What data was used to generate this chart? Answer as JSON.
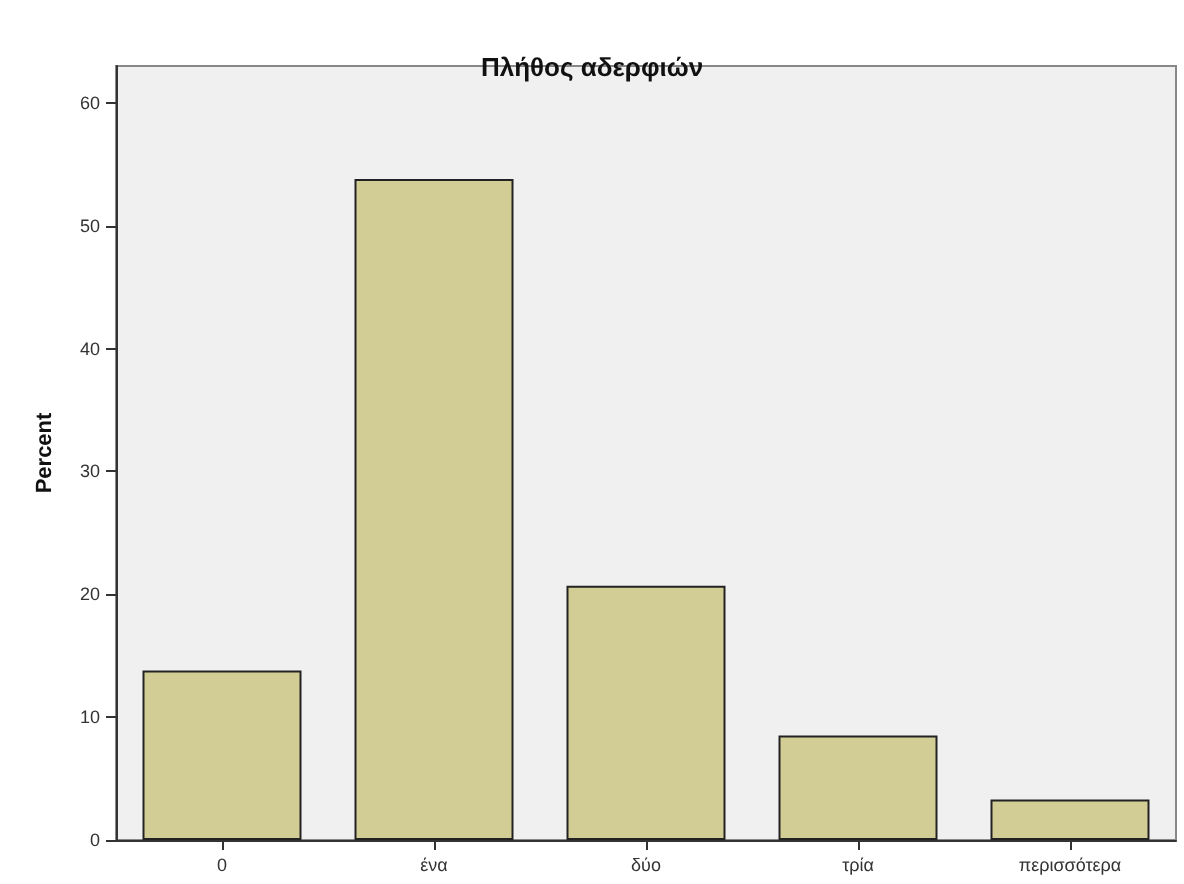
{
  "chart_data": {
    "type": "bar",
    "title": "Πλήθος αδερφιών",
    "ylabel": "Percent",
    "categories": [
      "0",
      "ένα",
      "δύο",
      "τρία",
      "περισσότερα"
    ],
    "values": [
      13.8,
      53.8,
      20.7,
      8.5,
      3.3
    ],
    "color": "#d2cd94",
    "ylim": [
      0,
      63
    ],
    "yticks": [
      0,
      10,
      20,
      30,
      40,
      50,
      60
    ],
    "grid": false
  }
}
